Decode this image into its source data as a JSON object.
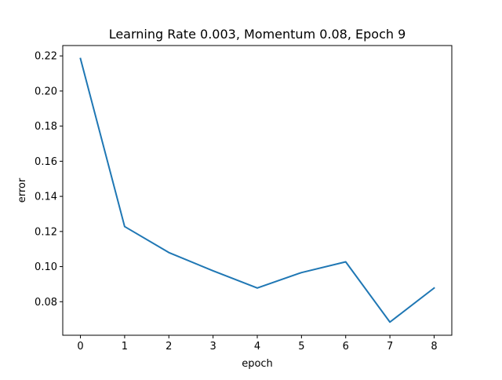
{
  "chart_data": {
    "type": "line",
    "title": "Learning Rate 0.003, Momentum 0.08, Epoch 9",
    "xlabel": "epoch",
    "ylabel": "error",
    "x": [
      0,
      1,
      2,
      3,
      4,
      5,
      6,
      7,
      8
    ],
    "series": [
      {
        "values": [
          0.2185,
          0.1228,
          0.108,
          0.0976,
          0.0878,
          0.0966,
          0.1027,
          0.0684,
          0.0878
        ]
      }
    ],
    "xlim": [
      -0.4,
      8.4
    ],
    "ylim": [
      0.0609,
      0.2259
    ],
    "xticks": [
      0,
      1,
      2,
      3,
      4,
      5,
      6,
      7,
      8
    ],
    "yticks": [
      0.08,
      0.1,
      0.12,
      0.14,
      0.16,
      0.18,
      0.2,
      0.22
    ],
    "ytick_labels": [
      "0.08",
      "0.10",
      "0.12",
      "0.14",
      "0.16",
      "0.18",
      "0.20",
      "0.22"
    ],
    "grid": false,
    "line_color": "#1f77b4"
  }
}
